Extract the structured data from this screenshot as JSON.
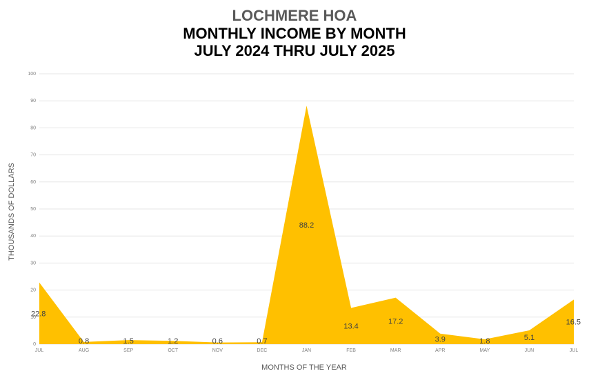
{
  "chart_data": {
    "type": "area",
    "title": "LOCHMERE HOA",
    "subtitle_line1": "MONTHLY INCOME BY MONTH",
    "subtitle_line2": "JULY 2024 THRU JULY 2025",
    "xlabel": "MONTHS OF THE YEAR",
    "ylabel": "THOUSANDS OF DOLLARS",
    "categories": [
      "JUL",
      "AUG",
      "SEP",
      "OCT",
      "NOV",
      "DEC",
      "JAN",
      "FEB",
      "MAR",
      "APR",
      "MAY",
      "JUN",
      "JUL"
    ],
    "values": [
      22.8,
      0.8,
      1.5,
      1.2,
      0.6,
      0.7,
      88.2,
      13.4,
      17.2,
      3.9,
      1.8,
      5.1,
      16.5
    ],
    "data_labels": [
      "22.8",
      "0.8",
      "1.5",
      "1.2",
      "0.6",
      "0.7",
      "88.2",
      "13.4",
      "17.2",
      "3.9",
      "1.8",
      "5.1",
      "16.5"
    ],
    "ylim": [
      0,
      100
    ],
    "yticks": [
      "0",
      "10",
      "20",
      "30",
      "40",
      "50",
      "60",
      "70",
      "80",
      "90",
      "100"
    ],
    "grid": true,
    "legend": "none",
    "color": "#FFC000"
  }
}
